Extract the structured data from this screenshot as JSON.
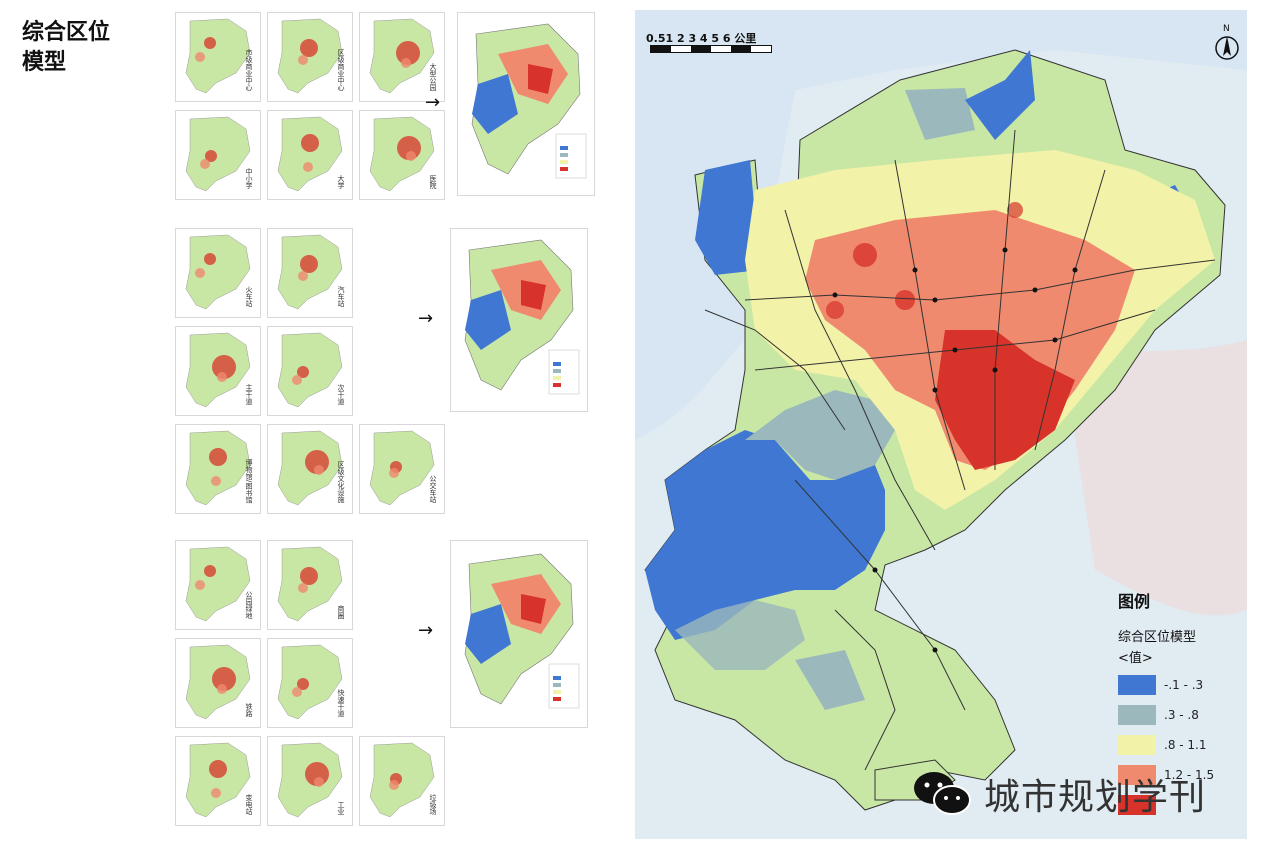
{
  "title": "综合区位\n模型",
  "thumb_groups": [
    {
      "labels": [
        "市级商业中心",
        "区级商业中心",
        "大型公园",
        "中小学",
        "大学",
        "医院"
      ]
    },
    {
      "labels": [
        "火车站",
        "汽车站",
        "主干道",
        "次干道",
        "博物馆/图书馆",
        "区级文化设施",
        "公交车站"
      ]
    },
    {
      "labels": [
        "公园绿地",
        "商圈",
        "铁路",
        "快速干道",
        "变电站",
        "工业",
        "垃圾场"
      ]
    }
  ],
  "map": {
    "scale_labels": "0.51  2   3   4   5   6 公里",
    "north_label": "N",
    "legend": {
      "title": "图例",
      "subtitle": "综合区位模型",
      "value_label": "<值>",
      "items": [
        {
          "label": "-.1 - .3",
          "color": "#3f77d3"
        },
        {
          "label": ".3 - .8",
          "color": "#9bb8bd"
        },
        {
          "label": ".8 - 1.1",
          "color": "#f2f3a8"
        },
        {
          "label": "1.2 - 1.5",
          "color": "#ef8a6e"
        },
        {
          "label": "",
          "color": "#d7332a"
        }
      ]
    },
    "colors": {
      "water": "#d7e6f2",
      "land": "#c9e7a4",
      "low": "#3f77d3",
      "lowmid": "#9bb8bd",
      "mid": "#f2f3a8",
      "high": "#ef8a6e",
      "top": "#d7332a"
    }
  },
  "watermark": {
    "text": "城市规划学刊",
    "icon": "wechat-icon"
  }
}
